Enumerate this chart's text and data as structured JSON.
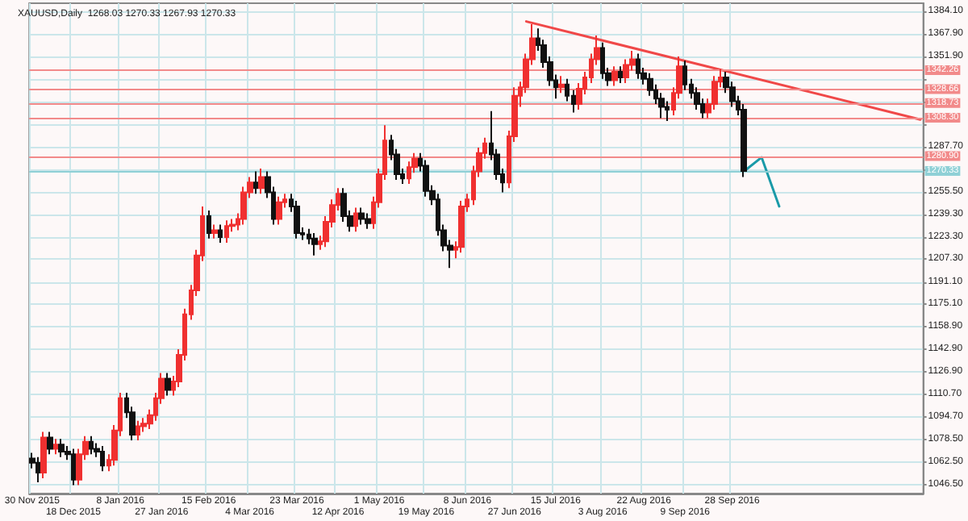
{
  "chart_data": {
    "type": "candlestick",
    "title": "XAUUSD,Daily  1268.03 1270.33 1267.93 1270.33",
    "categories": [
      "30 Nov 2015",
      null,
      null,
      null,
      null,
      null,
      null,
      "18 Dec 2015",
      null,
      null,
      null,
      null,
      null,
      null,
      null,
      "8 Jan 2016",
      null,
      null,
      null,
      null,
      null,
      null,
      "27 Jan 2016",
      null,
      null,
      null,
      null,
      null,
      null,
      null,
      "15 Feb 2016",
      null,
      null,
      null,
      null,
      null,
      null,
      "4 Mar 2016",
      null,
      null,
      null,
      null,
      null,
      null,
      null,
      "23 Mar 2016",
      null,
      null,
      null,
      null,
      null,
      null,
      "12 Apr 2016",
      null,
      null,
      null,
      null,
      null,
      null,
      "1 May 2016",
      null,
      null,
      null,
      null,
      null,
      null,
      null,
      "19 May 2016",
      null,
      null,
      null,
      null,
      null,
      null,
      "8 Jun 2016",
      null,
      null,
      null,
      null,
      null,
      null,
      null,
      "27 Jun 2016",
      null,
      null,
      null,
      null,
      null,
      null,
      "15 Jul 2016",
      null,
      null,
      null,
      null,
      null,
      null,
      null,
      "3 Aug 2016",
      null,
      null,
      null,
      null,
      null,
      null,
      "22 Aug 2016",
      null,
      null,
      null,
      null,
      null,
      null,
      "9 Sep 2016",
      null,
      null,
      null,
      null,
      null,
      null,
      null,
      "28 Sep 2016",
      null,
      null,
      null,
      null,
      null,
      null,
      null,
      null,
      null,
      null,
      null,
      null,
      null,
      null,
      null,
      null,
      null,
      null,
      null,
      null,
      null,
      null,
      null,
      null,
      null,
      null,
      null,
      null,
      null,
      null,
      null,
      null
    ],
    "colors": [
      "#111111",
      "#111111",
      "#f03030",
      "#111111",
      "#f03030",
      "#111111",
      "#111111",
      "#111111",
      "#f03030",
      "#f03030",
      "#111111",
      "#111111",
      "#111111",
      "#f03030",
      "#f03030",
      "#f03030",
      "#111111",
      "#111111",
      "#f03030",
      "#f03030",
      "#f03030",
      "#f03030",
      "#f03030",
      "#111111",
      "#f03030",
      "#f03030",
      "#f03030",
      "#f03030",
      "#f03030",
      "#f03030",
      "#111111",
      "#f03030",
      "#111111",
      "#f03030",
      "#f03030",
      "#f03030",
      "#f03030",
      "#f03030",
      "#111111",
      "#f03030",
      "#111111",
      "#111111",
      "#f03030",
      "#f03030",
      "#111111",
      "#111111",
      "#111111",
      "#111111",
      "#111111",
      "#f03030",
      "#f03030",
      "#f03030",
      "#f03030",
      "#111111",
      "#111111",
      "#f03030",
      "#111111",
      "#111111",
      "#f03030",
      "#f03030",
      "#f03030",
      "#111111",
      "#111111",
      "#111111",
      "#f03030",
      "#f03030",
      "#111111",
      "#111111",
      "#111111",
      "#111111",
      "#111111",
      "#111111",
      "#f03030",
      "#f03030",
      "#f03030",
      "#f03030",
      "#f03030",
      "#f03030",
      "#111111",
      "#111111",
      "#111111",
      "#f03030",
      "#f03030",
      "#f03030",
      "#f03030",
      "#f03030",
      "#111111",
      "#111111",
      "#111111",
      "#111111",
      "#f03030",
      "#111111",
      "#111111",
      "#f03030",
      "#f03030",
      "#f03030",
      "#f03030",
      "#111111",
      "#111111",
      "#f03030",
      "#111111",
      "#f03030",
      "#f03030",
      "#111111",
      "#111111",
      "#111111",
      "#111111",
      "#111111",
      "#111111",
      "#f03030",
      "#f03030",
      "#111111",
      "#111111",
      "#111111",
      "#111111",
      "#f03030",
      "#f03030",
      "#f03030",
      "#111111",
      "#111111",
      "#111111",
      "#111111",
      null,
      null,
      null,
      null,
      null,
      null,
      null,
      null,
      null,
      null,
      null,
      null,
      null,
      null,
      null,
      null,
      null,
      null,
      null,
      null,
      null,
      null,
      null,
      null,
      null,
      null,
      null,
      null,
      null,
      null
    ],
    "ohlc": [
      [
        1065,
        1069,
        1058,
        1062
      ],
      [
        1062,
        1066,
        1048,
        1055
      ],
      [
        1055,
        1084,
        1051,
        1080
      ],
      [
        1080,
        1084,
        1068,
        1072
      ],
      [
        1072,
        1079,
        1068,
        1075
      ],
      [
        1075,
        1079,
        1066,
        1070
      ],
      [
        1070,
        1074,
        1064,
        1068
      ],
      [
        1068,
        1072,
        1046,
        1050
      ],
      [
        1050,
        1072,
        1046,
        1068
      ],
      [
        1068,
        1081,
        1064,
        1077
      ],
      [
        1077,
        1081,
        1068,
        1072
      ],
      [
        1072,
        1076,
        1066,
        1070
      ],
      [
        1070,
        1074,
        1056,
        1060
      ],
      [
        1060,
        1068,
        1056,
        1064
      ],
      [
        1064,
        1089,
        1060,
        1085
      ],
      [
        1085,
        1112,
        1081,
        1108
      ],
      [
        1108,
        1112,
        1094,
        1098
      ],
      [
        1098,
        1102,
        1078,
        1082
      ],
      [
        1082,
        1092,
        1078,
        1088
      ],
      [
        1088,
        1094,
        1084,
        1090
      ],
      [
        1090,
        1100,
        1086,
        1096
      ],
      [
        1096,
        1112,
        1092,
        1108
      ],
      [
        1108,
        1126,
        1104,
        1122
      ],
      [
        1122,
        1126,
        1110,
        1114
      ],
      [
        1114,
        1124,
        1110,
        1120
      ],
      [
        1120,
        1143,
        1116,
        1139
      ],
      [
        1139,
        1172,
        1135,
        1168
      ],
      [
        1168,
        1189,
        1164,
        1185
      ],
      [
        1185,
        1214,
        1181,
        1210
      ],
      [
        1210,
        1245,
        1206,
        1238
      ],
      [
        1238,
        1242,
        1222,
        1226
      ],
      [
        1226,
        1232,
        1222,
        1228
      ],
      [
        1228,
        1232,
        1219,
        1223
      ],
      [
        1223,
        1235,
        1219,
        1231
      ],
      [
        1231,
        1236,
        1227,
        1232
      ],
      [
        1232,
        1240,
        1228,
        1236
      ],
      [
        1236,
        1259,
        1232,
        1255
      ],
      [
        1255,
        1266,
        1251,
        1262
      ],
      [
        1262,
        1270,
        1254,
        1258
      ],
      [
        1258,
        1272,
        1254,
        1266
      ],
      [
        1266,
        1270,
        1251,
        1255
      ],
      [
        1255,
        1259,
        1232,
        1236
      ],
      [
        1236,
        1252,
        1232,
        1248
      ],
      [
        1248,
        1254,
        1244,
        1250
      ],
      [
        1250,
        1254,
        1241,
        1245
      ],
      [
        1245,
        1249,
        1222,
        1226
      ],
      [
        1226,
        1230,
        1221,
        1225
      ],
      [
        1225,
        1229,
        1218,
        1222
      ],
      [
        1222,
        1226,
        1210,
        1218
      ],
      [
        1218,
        1224,
        1214,
        1220
      ],
      [
        1220,
        1238,
        1216,
        1234
      ],
      [
        1234,
        1250,
        1230,
        1246
      ],
      [
        1246,
        1258,
        1242,
        1254
      ],
      [
        1254,
        1258,
        1234,
        1238
      ],
      [
        1238,
        1242,
        1227,
        1231
      ],
      [
        1231,
        1244,
        1227,
        1240
      ],
      [
        1240,
        1244,
        1232,
        1236
      ],
      [
        1236,
        1240,
        1229,
        1233
      ],
      [
        1233,
        1252,
        1229,
        1248
      ],
      [
        1248,
        1272,
        1244,
        1268
      ],
      [
        1268,
        1303,
        1264,
        1292
      ],
      [
        1292,
        1296,
        1278,
        1282
      ],
      [
        1282,
        1286,
        1264,
        1268
      ],
      [
        1268,
        1272,
        1261,
        1265
      ],
      [
        1265,
        1277,
        1261,
        1273
      ],
      [
        1273,
        1283,
        1269,
        1279
      ],
      [
        1279,
        1283,
        1270,
        1274
      ],
      [
        1274,
        1278,
        1252,
        1256
      ],
      [
        1256,
        1260,
        1246,
        1250
      ],
      [
        1250,
        1254,
        1224,
        1228
      ],
      [
        1228,
        1232,
        1213,
        1217
      ],
      [
        1217,
        1221,
        1201,
        1214
      ],
      [
        1214,
        1220,
        1208,
        1216
      ],
      [
        1216,
        1249,
        1212,
        1245
      ],
      [
        1245,
        1254,
        1241,
        1250
      ],
      [
        1250,
        1274,
        1246,
        1270
      ],
      [
        1270,
        1287,
        1266,
        1283
      ],
      [
        1283,
        1294,
        1279,
        1290
      ],
      [
        1290,
        1313,
        1278,
        1282
      ],
      [
        1282,
        1286,
        1264,
        1268
      ],
      [
        1268,
        1272,
        1255,
        1262
      ],
      [
        1262,
        1299,
        1258,
        1295
      ],
      [
        1295,
        1330,
        1291,
        1324
      ],
      [
        1324,
        1334,
        1316,
        1330
      ],
      [
        1330,
        1354,
        1326,
        1350
      ],
      [
        1350,
        1375,
        1346,
        1365
      ],
      [
        1365,
        1372,
        1356,
        1360
      ],
      [
        1360,
        1364,
        1344,
        1348
      ],
      [
        1348,
        1352,
        1331,
        1335
      ],
      [
        1335,
        1339,
        1322,
        1330
      ],
      [
        1330,
        1338,
        1326,
        1332
      ],
      [
        1332,
        1336,
        1320,
        1324
      ],
      [
        1324,
        1328,
        1312,
        1318
      ],
      [
        1318,
        1333,
        1314,
        1329
      ],
      [
        1329,
        1341,
        1325,
        1337
      ],
      [
        1337,
        1354,
        1333,
        1350
      ],
      [
        1350,
        1367,
        1346,
        1358
      ],
      [
        1358,
        1362,
        1336,
        1340
      ],
      [
        1340,
        1344,
        1331,
        1335
      ],
      [
        1335,
        1345,
        1331,
        1341
      ],
      [
        1341,
        1345,
        1333,
        1337
      ],
      [
        1337,
        1350,
        1333,
        1346
      ],
      [
        1346,
        1356,
        1342,
        1350
      ],
      [
        1350,
        1354,
        1336,
        1340
      ],
      [
        1340,
        1344,
        1332,
        1336
      ],
      [
        1336,
        1340,
        1324,
        1328
      ],
      [
        1328,
        1332,
        1318,
        1322
      ],
      [
        1322,
        1326,
        1308,
        1316
      ],
      [
        1316,
        1320,
        1306,
        1314
      ],
      [
        1314,
        1330,
        1310,
        1326
      ],
      [
        1326,
        1352,
        1322,
        1345
      ],
      [
        1345,
        1349,
        1328,
        1332
      ],
      [
        1332,
        1336,
        1322,
        1326
      ],
      [
        1326,
        1330,
        1314,
        1318
      ],
      [
        1318,
        1322,
        1308,
        1312
      ],
      [
        1312,
        1322,
        1308,
        1318
      ],
      [
        1318,
        1338,
        1314,
        1334
      ],
      [
        1334,
        1343,
        1330,
        1337
      ],
      [
        1337,
        1341,
        1326,
        1330
      ],
      [
        1330,
        1334,
        1316,
        1320
      ],
      [
        1320,
        1324,
        1310,
        1314
      ],
      [
        1314,
        1318,
        1266,
        1270.33
      ],
      null,
      null,
      null,
      null,
      null,
      null,
      null,
      null,
      null,
      null,
      null,
      null,
      null,
      null,
      null,
      null,
      null,
      null,
      null,
      null,
      null,
      null,
      null,
      null,
      null,
      null,
      null,
      null,
      null,
      null
    ],
    "series": [
      {
        "type": "line",
        "color": "#f04848",
        "values": [
          null,
          null,
          null,
          null,
          null,
          null,
          null,
          null,
          null,
          null,
          null,
          null,
          null,
          null,
          null,
          null,
          null,
          null,
          null,
          null,
          null,
          null,
          null,
          null,
          null,
          null,
          null,
          null,
          null,
          null,
          null,
          null,
          null,
          null,
          null,
          null,
          null,
          null,
          null,
          null,
          null,
          null,
          null,
          null,
          null,
          null,
          null,
          null,
          null,
          null,
          null,
          null,
          null,
          null,
          null,
          null,
          null,
          null,
          null,
          null,
          null,
          null,
          null,
          null,
          null,
          null,
          null,
          null,
          null,
          null,
          null,
          null,
          null,
          null,
          null,
          null,
          null,
          null,
          null,
          null,
          null,
          null,
          null,
          null,
          1377,
          null,
          null,
          null,
          null,
          null,
          null,
          null,
          null,
          null,
          null,
          null,
          null,
          null,
          null,
          null,
          null,
          null,
          null,
          null,
          null,
          null,
          null,
          null,
          null,
          null,
          null,
          null,
          null,
          null,
          null,
          null,
          null,
          null,
          null,
          null,
          null,
          null,
          null,
          null,
          null,
          null,
          null,
          null,
          null,
          null,
          null,
          null,
          null,
          null,
          null,
          null,
          null,
          null,
          null,
          null,
          null,
          null,
          null,
          null,
          null,
          null,
          null,
          null,
          null,
          null,
          null,
          1307
        ]
      },
      {
        "type": "line",
        "color": "#1a9aa8",
        "values": [
          null,
          null,
          null,
          null,
          null,
          null,
          null,
          null,
          null,
          null,
          null,
          null,
          null,
          null,
          null,
          null,
          null,
          null,
          null,
          null,
          null,
          null,
          null,
          null,
          null,
          null,
          null,
          null,
          null,
          null,
          null,
          null,
          null,
          null,
          null,
          null,
          null,
          null,
          null,
          null,
          null,
          null,
          null,
          null,
          null,
          null,
          null,
          null,
          null,
          null,
          null,
          null,
          null,
          null,
          null,
          null,
          null,
          null,
          null,
          null,
          null,
          null,
          null,
          null,
          null,
          null,
          null,
          null,
          null,
          null,
          null,
          null,
          null,
          null,
          null,
          null,
          null,
          null,
          null,
          null,
          null,
          null,
          null,
          null,
          null,
          null,
          null,
          null,
          null,
          null,
          null,
          null,
          null,
          null,
          null,
          null,
          null,
          null,
          null,
          null,
          null,
          null,
          null,
          null,
          null,
          null,
          null,
          null,
          null,
          null,
          null,
          null,
          null,
          null,
          null,
          null,
          null,
          null,
          null,
          null,
          null,
          1270,
          null,
          null,
          1280,
          null,
          null,
          1245,
          null,
          null,
          null,
          null,
          null,
          null,
          null,
          null,
          null,
          null,
          null,
          null,
          null,
          null,
          null,
          null,
          null,
          null,
          null,
          null,
          null,
          null,
          null,
          null
        ]
      }
    ],
    "ylim": [
      1040,
      1390
    ],
    "yticks": [
      {
        "value": 1384.1,
        "label": "1384.10"
      },
      {
        "value": 1367.9,
        "label": "1367.90"
      },
      {
        "value": 1351.9,
        "label": "1351.90"
      },
      {
        "value": 1335.9,
        "label": null
      },
      {
        "value": 1319.7,
        "label": null
      },
      {
        "value": 1303.7,
        "label": null
      },
      {
        "value": 1287.7,
        "label": "1287.70"
      },
      {
        "value": 1271.6,
        "label": null
      },
      {
        "value": 1255.5,
        "label": "1255.50"
      },
      {
        "value": 1239.3,
        "label": "1239.30"
      },
      {
        "value": 1223.3,
        "label": "1223.30"
      },
      {
        "value": 1207.3,
        "label": "1207.30"
      },
      {
        "value": 1191.1,
        "label": "1191.10"
      },
      {
        "value": 1175.1,
        "label": "1175.10"
      },
      {
        "value": 1158.9,
        "label": "1158.90"
      },
      {
        "value": 1142.9,
        "label": "1142.90"
      },
      {
        "value": 1126.9,
        "label": "1126.90"
      },
      {
        "value": 1110.7,
        "label": "1110.70"
      },
      {
        "value": 1094.7,
        "label": "1094.70"
      },
      {
        "value": 1078.5,
        "label": "1078.50"
      },
      {
        "value": 1062.5,
        "label": "1062.50"
      },
      {
        "value": 1046.5,
        "label": "1046.50"
      }
    ],
    "ref_lines": [
      {
        "axis": "y",
        "value": 1342.26,
        "label": "1342.26",
        "color": "#f28a8a"
      },
      {
        "axis": "y",
        "value": 1328.66,
        "label": "1328.66",
        "color": "#f28a8a"
      },
      {
        "axis": "y",
        "value": 1318.73,
        "label": "1318.73",
        "color": "#f28a8a"
      },
      {
        "axis": "y",
        "value": 1308.3,
        "label": "1308.30",
        "color": "#f28a8a"
      },
      {
        "axis": "y",
        "value": 1280.9,
        "label": "1280.90",
        "color": "#f28a8a"
      },
      {
        "axis": "y",
        "value": 1270.33,
        "label": "1270.33",
        "color": "#8fd0d6"
      }
    ],
    "grid": true
  }
}
